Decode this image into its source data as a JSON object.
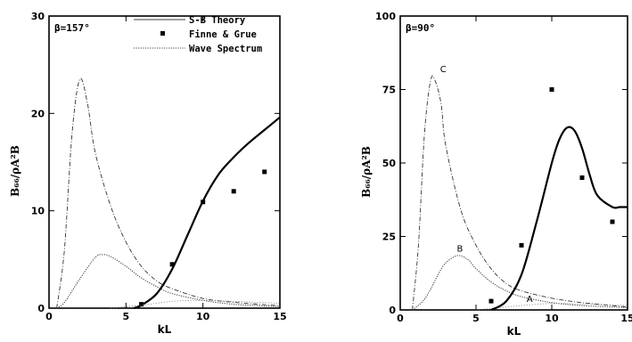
{
  "chart_data": [
    {
      "type": "line",
      "annotation": "β=157°",
      "xlabel": "kL",
      "ylabel": "B₆₆/ρA²B",
      "xlim": [
        0,
        15
      ],
      "ylim": [
        0,
        30
      ],
      "xticks": [
        "0",
        "5",
        "10",
        "15"
      ],
      "yticks": [
        "0",
        "10",
        "20",
        "30"
      ],
      "legend": {
        "position": "top-right",
        "entries": [
          "S-B Theory",
          "Finne & Grue",
          "Wave Spectrum"
        ]
      },
      "series": [
        {
          "name": "S-B Theory",
          "style": "solid-thick",
          "x": [
            5.5,
            6,
            7,
            8,
            9,
            10,
            11,
            12,
            13,
            14,
            15
          ],
          "y": [
            0,
            0.3,
            1.5,
            4,
            7.5,
            11,
            13.7,
            15.5,
            17,
            18.3,
            19.6
          ]
        },
        {
          "name": "Finne & Grue",
          "style": "markers",
          "x": [
            6,
            8,
            10,
            12,
            14
          ],
          "y": [
            0.4,
            4.5,
            10.9,
            12,
            14
          ]
        },
        {
          "name": "Wave Spectrum",
          "style": "dash-dot",
          "x": [
            0.5,
            1,
            1.5,
            2,
            2.5,
            3,
            4,
            5,
            6,
            7,
            8,
            10,
            12,
            15
          ],
          "y": [
            0,
            6,
            18,
            23.5,
            21,
            16,
            10.5,
            6.8,
            4.3,
            2.8,
            2,
            1,
            0.6,
            0.25
          ]
        },
        {
          "style": "dotted",
          "x": [
            0.5,
            1,
            2,
            3,
            3.5,
            4,
            5,
            6,
            7,
            8,
            10,
            12,
            15
          ],
          "y": [
            0,
            0.6,
            3,
            5.2,
            5.5,
            5.3,
            4.3,
            3.1,
            2.2,
            1.5,
            0.8,
            0.4,
            0.15
          ]
        },
        {
          "style": "dotted-faint",
          "x": [
            4,
            6,
            8,
            10,
            12,
            15
          ],
          "y": [
            0,
            0.3,
            0.7,
            0.8,
            0.7,
            0.5
          ]
        }
      ]
    },
    {
      "type": "line",
      "annotation": "β=90°",
      "xlabel": "kL",
      "ylabel": "B₆₆/ρA²B",
      "xlim": [
        0,
        15
      ],
      "ylim": [
        0,
        100
      ],
      "xticks": [
        "0",
        "5",
        "10",
        "15"
      ],
      "yticks": [
        "0",
        "25",
        "50",
        "75",
        "100"
      ],
      "series": [
        {
          "label": "C",
          "style": "dash-dot",
          "x": [
            0.8,
            1.2,
            1.6,
            2,
            2.3,
            2.7,
            3,
            4,
            5,
            6,
            7,
            8,
            10,
            12,
            15
          ],
          "y": [
            0,
            22,
            60,
            78,
            78,
            70,
            56,
            34,
            22,
            14,
            9,
            6.5,
            4,
            2.5,
            1
          ]
        },
        {
          "label": "B",
          "style": "dotted",
          "x": [
            0.8,
            1.5,
            2,
            2.5,
            3,
            3.8,
            4.5,
            5,
            6,
            7,
            8,
            10,
            12,
            15
          ],
          "y": [
            0,
            3,
            7,
            12,
            16,
            18.5,
            17,
            14,
            9.5,
            6.5,
            4.5,
            2.5,
            1.5,
            0.8
          ]
        },
        {
          "label": "A",
          "style": "dotted-faint",
          "x": [
            5,
            6,
            8,
            10,
            12,
            15
          ],
          "y": [
            0,
            0.5,
            1.5,
            2.2,
            2,
            1.5
          ]
        },
        {
          "style": "solid-thick",
          "x": [
            6,
            7,
            8,
            9,
            10,
            10.5,
            11,
            11.5,
            12,
            12.5,
            13,
            14,
            14.5,
            15
          ],
          "y": [
            0,
            3,
            12,
            30,
            50,
            58,
            62,
            61,
            55,
            46,
            39,
            35,
            35,
            35
          ]
        },
        {
          "style": "markers",
          "x": [
            6,
            8,
            10,
            12,
            14
          ],
          "y": [
            3,
            22,
            75,
            45,
            30
          ]
        }
      ]
    }
  ]
}
